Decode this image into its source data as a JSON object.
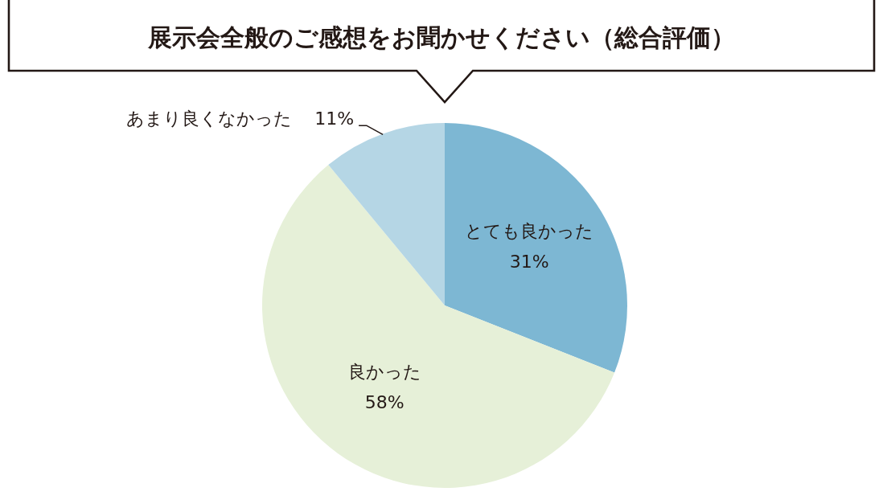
{
  "chart_data": {
    "type": "pie",
    "title": "展示会全般のご感想をお聞かせください（総合評価）",
    "categories": [
      "とても良かった",
      "良かった",
      "あまり良くなかった"
    ],
    "values": [
      31,
      58,
      11
    ],
    "colors": [
      "#7db7d3",
      "#e6f0d8",
      "#b5d6e5"
    ],
    "value_labels": [
      "31%",
      "58%",
      "11%"
    ]
  }
}
